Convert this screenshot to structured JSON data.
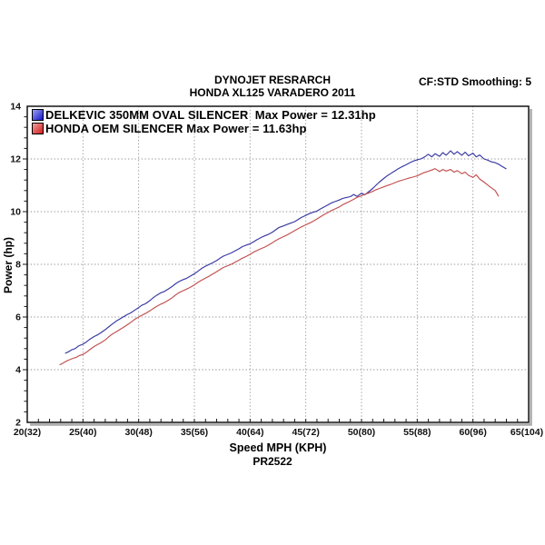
{
  "header": {
    "center_line1": "DYNOJET RESRARCH",
    "center_line2": "HONDA XL125 VARADERO 2011",
    "right_info": "CF:STD Smoothing: 5"
  },
  "chart_data": {
    "type": "line",
    "title": "DYNOJET RESRARCH",
    "subtitle": "HONDA XL125 VARADERO 2011",
    "corner_note": "CF:STD Smoothing: 5",
    "xlabel": "Speed MPH (KPH)",
    "ylabel": "Power (hp)",
    "footnote": "PR2522",
    "xlim": [
      20,
      65
    ],
    "ylim": [
      2,
      14
    ],
    "x_tick_values": [
      20,
      25,
      30,
      35,
      40,
      45,
      50,
      55,
      60,
      65
    ],
    "x_tick_labels": [
      "20(32)",
      "25(40)",
      "30(48)",
      "35(56)",
      "40(64)",
      "45(72)",
      "50(80)",
      "55(88)",
      "60(96)",
      "65(104)"
    ],
    "y_tick_values": [
      2,
      4,
      6,
      8,
      10,
      12,
      14
    ],
    "y_tick_labels": [
      "2",
      "4",
      "6",
      "8",
      "10",
      "12",
      "14"
    ],
    "x_minor_step": 1,
    "y_minor_step": 0.4,
    "grid": "dotted",
    "grid_color": "#909090",
    "border_color": "#141414",
    "shadow_color": "#a9a9a9",
    "legend_position": "top-left-inside",
    "series": [
      {
        "name": "DELKEVIC 350MM OVAL SILENCER",
        "legend_label": "DELKEVIC 350MM OVAL SILENCER  Max Power = 12.31hp",
        "max_power_hp": 12.31,
        "color": "#3737a3",
        "swatch_gradient": [
          "#9aa0f0",
          "#1515cc"
        ],
        "points": [
          [
            23.4,
            4.62
          ],
          [
            23.7,
            4.68
          ],
          [
            24.0,
            4.76
          ],
          [
            24.3,
            4.8
          ],
          [
            24.6,
            4.9
          ],
          [
            25.0,
            4.97
          ],
          [
            25.3,
            5.05
          ],
          [
            25.6,
            5.15
          ],
          [
            26.0,
            5.26
          ],
          [
            26.3,
            5.32
          ],
          [
            26.6,
            5.4
          ],
          [
            27.0,
            5.52
          ],
          [
            27.3,
            5.62
          ],
          [
            27.6,
            5.72
          ],
          [
            28.0,
            5.85
          ],
          [
            28.3,
            5.92
          ],
          [
            28.6,
            6.0
          ],
          [
            29.0,
            6.1
          ],
          [
            29.3,
            6.16
          ],
          [
            29.6,
            6.25
          ],
          [
            30.0,
            6.36
          ],
          [
            30.3,
            6.45
          ],
          [
            30.6,
            6.5
          ],
          [
            31.0,
            6.62
          ],
          [
            31.3,
            6.73
          ],
          [
            31.6,
            6.82
          ],
          [
            32.0,
            6.92
          ],
          [
            32.3,
            6.97
          ],
          [
            32.6,
            7.05
          ],
          [
            33.0,
            7.16
          ],
          [
            33.3,
            7.26
          ],
          [
            33.6,
            7.34
          ],
          [
            34.0,
            7.42
          ],
          [
            34.3,
            7.47
          ],
          [
            34.6,
            7.54
          ],
          [
            35.0,
            7.64
          ],
          [
            35.3,
            7.73
          ],
          [
            35.6,
            7.83
          ],
          [
            36.0,
            7.93
          ],
          [
            36.3,
            7.99
          ],
          [
            36.6,
            8.05
          ],
          [
            37.0,
            8.14
          ],
          [
            37.3,
            8.23
          ],
          [
            37.6,
            8.31
          ],
          [
            38.0,
            8.38
          ],
          [
            38.3,
            8.43
          ],
          [
            38.6,
            8.5
          ],
          [
            39.0,
            8.59
          ],
          [
            39.3,
            8.67
          ],
          [
            39.6,
            8.72
          ],
          [
            40.0,
            8.78
          ],
          [
            40.3,
            8.85
          ],
          [
            40.6,
            8.93
          ],
          [
            41.0,
            9.02
          ],
          [
            41.3,
            9.08
          ],
          [
            41.6,
            9.13
          ],
          [
            42.0,
            9.22
          ],
          [
            42.3,
            9.31
          ],
          [
            42.6,
            9.4
          ],
          [
            43.0,
            9.46
          ],
          [
            43.3,
            9.51
          ],
          [
            43.6,
            9.56
          ],
          [
            44.0,
            9.62
          ],
          [
            44.3,
            9.7
          ],
          [
            44.6,
            9.78
          ],
          [
            45.0,
            9.86
          ],
          [
            45.3,
            9.92
          ],
          [
            45.6,
            9.97
          ],
          [
            46.0,
            10.02
          ],
          [
            46.3,
            10.1
          ],
          [
            46.6,
            10.17
          ],
          [
            47.0,
            10.26
          ],
          [
            47.3,
            10.33
          ],
          [
            47.6,
            10.38
          ],
          [
            48.0,
            10.44
          ],
          [
            48.3,
            10.5
          ],
          [
            48.6,
            10.53
          ],
          [
            49.0,
            10.57
          ],
          [
            49.3,
            10.65
          ],
          [
            49.6,
            10.58
          ],
          [
            50.0,
            10.7
          ],
          [
            50.3,
            10.64
          ],
          [
            50.6,
            10.74
          ],
          [
            51.0,
            10.88
          ],
          [
            51.3,
            11.0
          ],
          [
            51.6,
            11.12
          ],
          [
            52.0,
            11.26
          ],
          [
            52.3,
            11.36
          ],
          [
            52.6,
            11.44
          ],
          [
            53.0,
            11.55
          ],
          [
            53.3,
            11.63
          ],
          [
            53.6,
            11.7
          ],
          [
            54.0,
            11.78
          ],
          [
            54.3,
            11.85
          ],
          [
            54.6,
            11.91
          ],
          [
            55.0,
            11.97
          ],
          [
            55.3,
            12.0
          ],
          [
            55.6,
            12.06
          ],
          [
            56.0,
            12.18
          ],
          [
            56.3,
            12.08
          ],
          [
            56.6,
            12.2
          ],
          [
            57.0,
            12.1
          ],
          [
            57.3,
            12.24
          ],
          [
            57.6,
            12.14
          ],
          [
            58.0,
            12.31
          ],
          [
            58.3,
            12.18
          ],
          [
            58.6,
            12.28
          ],
          [
            59.0,
            12.14
          ],
          [
            59.3,
            12.26
          ],
          [
            59.6,
            12.12
          ],
          [
            60.0,
            12.22
          ],
          [
            60.3,
            12.08
          ],
          [
            60.6,
            12.15
          ],
          [
            61.0,
            12.0
          ],
          [
            61.3,
            11.96
          ],
          [
            61.6,
            11.9
          ],
          [
            62.0,
            11.86
          ],
          [
            62.3,
            11.8
          ],
          [
            62.6,
            11.72
          ],
          [
            63.0,
            11.62
          ]
        ]
      },
      {
        "name": "HONDA OEM SILENCER",
        "legend_label": "HONDA OEM SILENCER Max Power = 11.63hp",
        "max_power_hp": 11.63,
        "color": "#c24f4f",
        "swatch_gradient": [
          "#f0a0a0",
          "#d51a1a"
        ],
        "points": [
          [
            22.9,
            4.18
          ],
          [
            23.2,
            4.25
          ],
          [
            23.5,
            4.32
          ],
          [
            23.8,
            4.38
          ],
          [
            24.1,
            4.43
          ],
          [
            24.4,
            4.47
          ],
          [
            24.7,
            4.54
          ],
          [
            25.0,
            4.58
          ],
          [
            25.3,
            4.66
          ],
          [
            25.6,
            4.76
          ],
          [
            26.0,
            4.88
          ],
          [
            26.3,
            4.95
          ],
          [
            26.6,
            5.02
          ],
          [
            27.0,
            5.13
          ],
          [
            27.3,
            5.24
          ],
          [
            27.6,
            5.34
          ],
          [
            28.0,
            5.44
          ],
          [
            28.3,
            5.52
          ],
          [
            28.6,
            5.6
          ],
          [
            29.0,
            5.71
          ],
          [
            29.3,
            5.8
          ],
          [
            29.6,
            5.9
          ],
          [
            30.0,
            6.0
          ],
          [
            30.3,
            6.07
          ],
          [
            30.6,
            6.13
          ],
          [
            31.0,
            6.23
          ],
          [
            31.3,
            6.32
          ],
          [
            31.6,
            6.4
          ],
          [
            32.0,
            6.49
          ],
          [
            32.3,
            6.55
          ],
          [
            32.6,
            6.62
          ],
          [
            33.0,
            6.73
          ],
          [
            33.3,
            6.83
          ],
          [
            33.6,
            6.92
          ],
          [
            34.0,
            7.0
          ],
          [
            34.3,
            7.06
          ],
          [
            34.6,
            7.12
          ],
          [
            35.0,
            7.22
          ],
          [
            35.3,
            7.31
          ],
          [
            35.6,
            7.39
          ],
          [
            36.0,
            7.48
          ],
          [
            36.3,
            7.54
          ],
          [
            36.6,
            7.62
          ],
          [
            37.0,
            7.72
          ],
          [
            37.3,
            7.8
          ],
          [
            37.6,
            7.88
          ],
          [
            38.0,
            7.95
          ],
          [
            38.3,
            8.0
          ],
          [
            38.6,
            8.07
          ],
          [
            39.0,
            8.16
          ],
          [
            39.3,
            8.23
          ],
          [
            39.6,
            8.29
          ],
          [
            40.0,
            8.38
          ],
          [
            40.3,
            8.46
          ],
          [
            40.6,
            8.52
          ],
          [
            41.0,
            8.6
          ],
          [
            41.3,
            8.65
          ],
          [
            41.6,
            8.72
          ],
          [
            42.0,
            8.82
          ],
          [
            42.3,
            8.9
          ],
          [
            42.6,
            8.97
          ],
          [
            43.0,
            9.05
          ],
          [
            43.3,
            9.11
          ],
          [
            43.6,
            9.18
          ],
          [
            44.0,
            9.28
          ],
          [
            44.3,
            9.35
          ],
          [
            44.6,
            9.42
          ],
          [
            45.0,
            9.5
          ],
          [
            45.3,
            9.56
          ],
          [
            45.6,
            9.62
          ],
          [
            46.0,
            9.72
          ],
          [
            46.3,
            9.8
          ],
          [
            46.6,
            9.88
          ],
          [
            47.0,
            9.97
          ],
          [
            47.3,
            10.04
          ],
          [
            47.6,
            10.1
          ],
          [
            48.0,
            10.18
          ],
          [
            48.3,
            10.26
          ],
          [
            48.6,
            10.32
          ],
          [
            49.0,
            10.4
          ],
          [
            49.3,
            10.47
          ],
          [
            49.6,
            10.54
          ],
          [
            50.0,
            10.6
          ],
          [
            50.3,
            10.66
          ],
          [
            50.6,
            10.7
          ],
          [
            51.0,
            10.77
          ],
          [
            51.3,
            10.83
          ],
          [
            51.6,
            10.88
          ],
          [
            52.0,
            10.94
          ],
          [
            52.3,
            10.99
          ],
          [
            52.6,
            11.03
          ],
          [
            53.0,
            11.1
          ],
          [
            53.3,
            11.15
          ],
          [
            53.6,
            11.19
          ],
          [
            54.0,
            11.24
          ],
          [
            54.3,
            11.28
          ],
          [
            54.6,
            11.31
          ],
          [
            55.0,
            11.36
          ],
          [
            55.3,
            11.42
          ],
          [
            55.6,
            11.48
          ],
          [
            56.0,
            11.53
          ],
          [
            56.3,
            11.58
          ],
          [
            56.6,
            11.63
          ],
          [
            57.0,
            11.52
          ],
          [
            57.3,
            11.6
          ],
          [
            57.6,
            11.54
          ],
          [
            58.0,
            11.6
          ],
          [
            58.3,
            11.5
          ],
          [
            58.6,
            11.56
          ],
          [
            59.0,
            11.44
          ],
          [
            59.3,
            11.5
          ],
          [
            59.6,
            11.38
          ],
          [
            60.0,
            11.3
          ],
          [
            60.3,
            11.4
          ],
          [
            60.6,
            11.24
          ],
          [
            61.0,
            11.12
          ],
          [
            61.3,
            11.02
          ],
          [
            61.6,
            10.92
          ],
          [
            62.0,
            10.8
          ],
          [
            62.3,
            10.58
          ]
        ]
      }
    ]
  }
}
